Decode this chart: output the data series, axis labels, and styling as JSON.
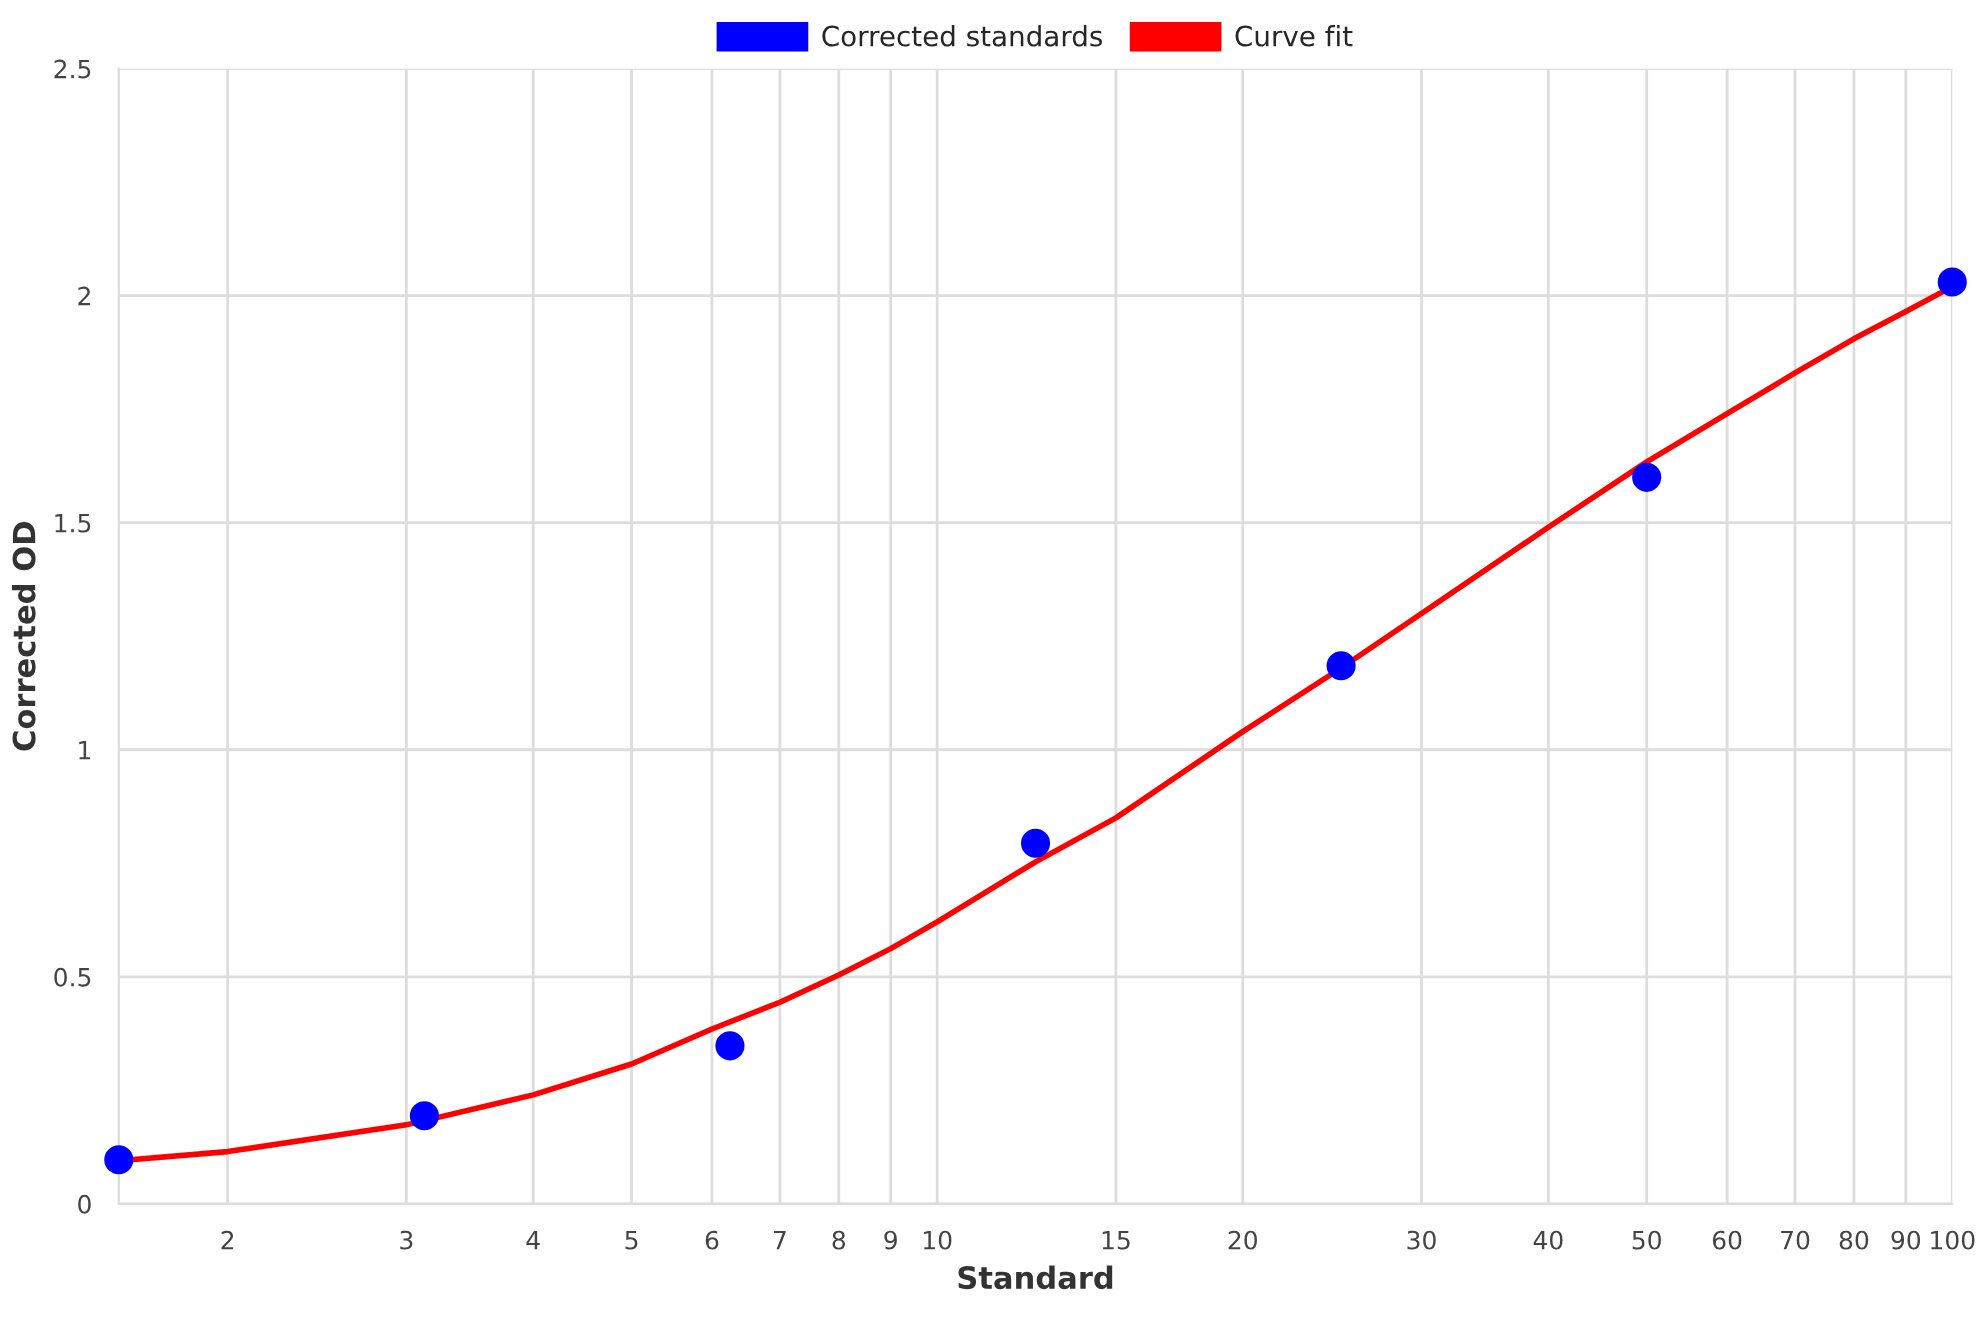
{
  "chart_data": {
    "type": "scatter",
    "xlabel": "Standard",
    "ylabel": "Corrected OD",
    "log": "x",
    "grid": true,
    "legend": "top",
    "xlim": [
      1.5625,
      100
    ],
    "xticks": [
      2,
      3,
      4,
      5,
      6,
      7,
      8,
      9,
      10,
      15,
      20,
      30,
      40,
      50,
      60,
      70,
      80,
      90,
      100
    ],
    "ylim": [
      0,
      2.5
    ],
    "yticks": [
      0,
      0.5,
      1,
      1.5,
      2,
      2.5
    ],
    "series": [
      {
        "name": "Corrected standards",
        "color": "#0000ff",
        "marker": "circle",
        "x": [
          1.5625,
          3.125,
          6.25,
          12.5,
          25,
          50,
          100
        ],
        "values": [
          0.097,
          0.194,
          0.348,
          0.794,
          1.185,
          1.6,
          2.03
        ]
      },
      {
        "name": "Curve fit",
        "type": "line",
        "color": "#ff0000",
        "marker": "none",
        "line_style": "solid",
        "x": [
          1.5625,
          2,
          3,
          4,
          5,
          6,
          7,
          8,
          9,
          10,
          12.5,
          15,
          20,
          25,
          30,
          40,
          50,
          60,
          70,
          80,
          90,
          100
        ],
        "values": [
          0.095,
          0.115,
          0.174,
          0.24,
          0.308,
          0.385,
          0.444,
          0.504,
          0.562,
          0.621,
          0.753,
          0.85,
          1.04,
          1.18,
          1.3,
          1.49,
          1.634,
          1.74,
          1.83,
          1.905,
          1.965,
          2.02
        ]
      }
    ]
  }
}
